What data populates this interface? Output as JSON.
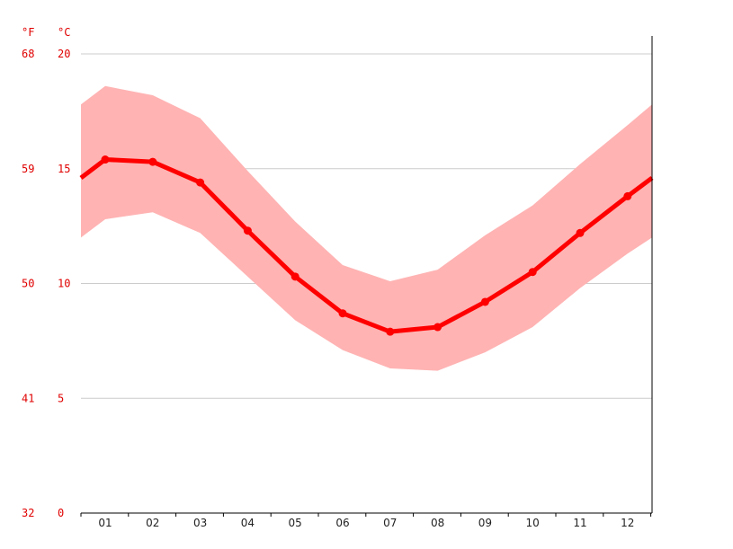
{
  "chart_data": {
    "type": "line",
    "title": "",
    "unit_left": "°F",
    "unit_right": "°C",
    "categories": [
      "01",
      "02",
      "03",
      "04",
      "05",
      "06",
      "07",
      "08",
      "09",
      "10",
      "11",
      "12"
    ],
    "ylim_celsius": [
      0,
      20
    ],
    "y_ticks_celsius": [
      "0",
      "5",
      "10",
      "15",
      "20"
    ],
    "y_ticks_fahrenheit": [
      "32",
      "41",
      "50",
      "59",
      "68"
    ],
    "grid": true,
    "series": [
      {
        "role": "average",
        "values": [
          15.4,
          15.3,
          14.4,
          12.3,
          10.3,
          8.7,
          7.9,
          8.1,
          9.2,
          10.5,
          12.2,
          13.8
        ]
      },
      {
        "role": "max",
        "values": [
          18.6,
          18.2,
          17.2,
          14.9,
          12.7,
          10.8,
          10.1,
          10.6,
          12.1,
          13.4,
          15.2,
          16.9
        ]
      },
      {
        "role": "min",
        "values": [
          12.8,
          13.1,
          12.2,
          10.3,
          8.4,
          7.1,
          6.3,
          6.2,
          7.0,
          8.1,
          9.8,
          11.3
        ]
      }
    ],
    "edge_values": {
      "average": [
        14.6,
        14.6
      ],
      "max": [
        17.8,
        17.8
      ],
      "min": [
        12.0,
        12.0
      ]
    },
    "colors": {
      "line": "#ff0000",
      "band": "#ffb3b3",
      "grid": "#cccccc",
      "axis": "#000000",
      "tick_label": "#e00000"
    }
  }
}
